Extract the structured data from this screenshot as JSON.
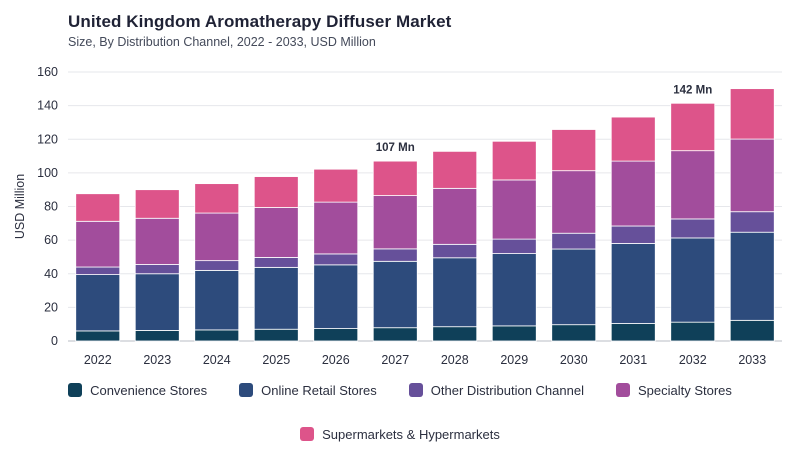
{
  "title": "United Kingdom Aromatherapy Diffuser Market",
  "subtitle": "Size, By Distribution Channel, 2022 - 2033, USD Million",
  "chart_data": {
    "type": "bar",
    "stacked": true,
    "title": "United Kingdom Aromatherapy Diffuser Market",
    "subtitle": "Size, By Distribution Channel, 2022 - 2033, USD Million",
    "xlabel": "",
    "ylabel": "USD Million",
    "ylim": [
      0,
      160
    ],
    "yticks": [
      0,
      20,
      40,
      60,
      80,
      100,
      120,
      140,
      160
    ],
    "grid": true,
    "legend_position": "bottom",
    "categories": [
      "2022",
      "2023",
      "2024",
      "2025",
      "2026",
      "2027",
      "2028",
      "2029",
      "2030",
      "2031",
      "2032",
      "2033"
    ],
    "series": [
      {
        "name": "Convenience Stores",
        "color": "#0f4059",
        "values": [
          6,
          6.3,
          6.6,
          7,
          7.4,
          7.9,
          8.5,
          9,
          9.7,
          10.4,
          11.2,
          12.3
        ]
      },
      {
        "name": "Online Retail Stores",
        "color": "#2d4b7c",
        "values": [
          33.5,
          33.7,
          35.4,
          36.8,
          37.9,
          39.5,
          41,
          43,
          45,
          47.6,
          50.1,
          52.4
        ]
      },
      {
        "name": "Other Distribution Channel",
        "color": "#66509a",
        "values": [
          4.5,
          5.5,
          5.8,
          5.9,
          6.5,
          7.4,
          8,
          8.6,
          9.4,
          10.4,
          11.3,
          12.2
        ]
      },
      {
        "name": "Specialty Stores",
        "color": "#a24d9c",
        "values": [
          27.2,
          27.5,
          28.3,
          29.7,
          30.8,
          31.7,
          33.3,
          35.2,
          37.2,
          38.6,
          40.6,
          43.2
        ]
      },
      {
        "name": "Supermarkets & Hypermarkets",
        "color": "#dd548a",
        "values": [
          16.4,
          17,
          17.5,
          18.4,
          19.6,
          20.5,
          22,
          23,
          24.5,
          26.2,
          28.2,
          30
        ]
      }
    ],
    "annotations": [
      {
        "category": "2027",
        "text": "107 Mn"
      },
      {
        "category": "2032",
        "text": "142 Mn"
      }
    ]
  }
}
